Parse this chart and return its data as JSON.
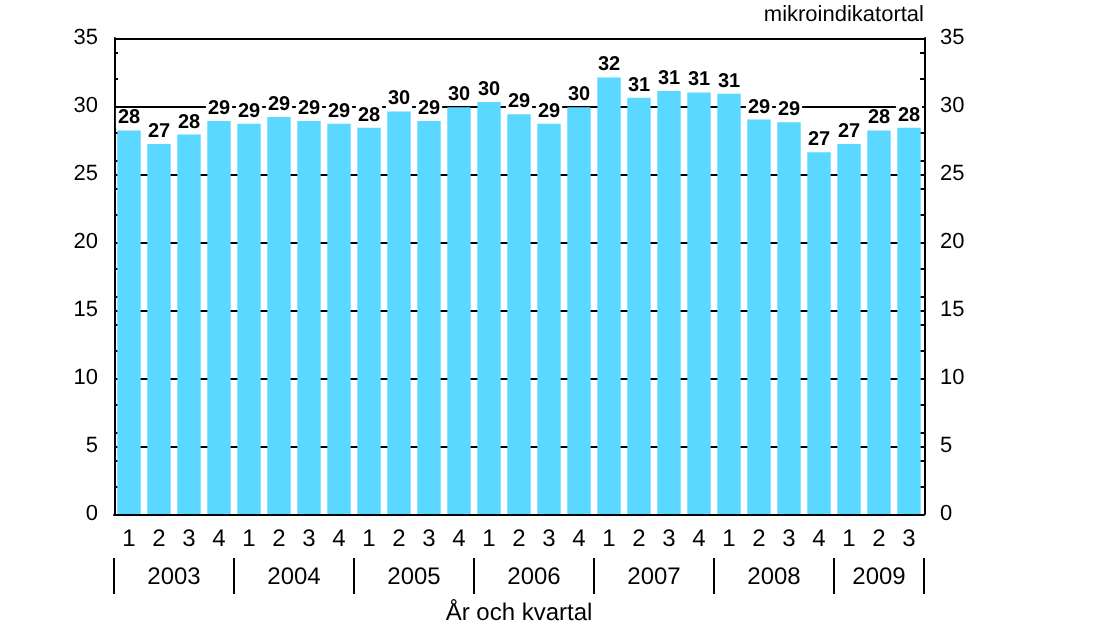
{
  "chart_data": {
    "type": "bar",
    "xlabel": "År och kvartal",
    "y2label": "mikroindikatortal",
    "categories": [
      "1",
      "2",
      "3",
      "4",
      "1",
      "2",
      "3",
      "4",
      "1",
      "2",
      "3",
      "4",
      "1",
      "2",
      "3",
      "4",
      "1",
      "2",
      "3",
      "4",
      "1",
      "2",
      "3",
      "4",
      "1",
      "2",
      "3"
    ],
    "annotations": [
      "2003",
      "2004",
      "2005",
      "2006",
      "2007",
      "2008",
      "2009"
    ],
    "series": [
      {
        "color": "#5ad8ff",
        "values": [
          28.2,
          27.2,
          27.9,
          28.9,
          28.7,
          29.2,
          28.9,
          28.7,
          28.4,
          29.6,
          28.9,
          29.9,
          30.3,
          29.4,
          28.7,
          29.9,
          32.1,
          30.6,
          31.1,
          31.0,
          30.9,
          29.0,
          28.8,
          26.6,
          27.2,
          28.2,
          28.4
        ],
        "value_labels": [
          "28",
          "27",
          "28",
          "29",
          "29",
          "29",
          "29",
          "29",
          "28",
          "30",
          "29",
          "30",
          "30",
          "29",
          "29",
          "30",
          "32",
          "31",
          "31",
          "31",
          "31",
          "29",
          "29",
          "27",
          "27",
          "28",
          "28"
        ]
      }
    ],
    "ylim": [
      0,
      35
    ],
    "yticks": [
      0,
      5,
      10,
      15,
      20,
      25,
      30,
      35
    ],
    "y2lim": [
      0,
      35
    ],
    "y2ticks": [
      0,
      5,
      10,
      15,
      20,
      25,
      30,
      35
    ],
    "grid": "y"
  }
}
